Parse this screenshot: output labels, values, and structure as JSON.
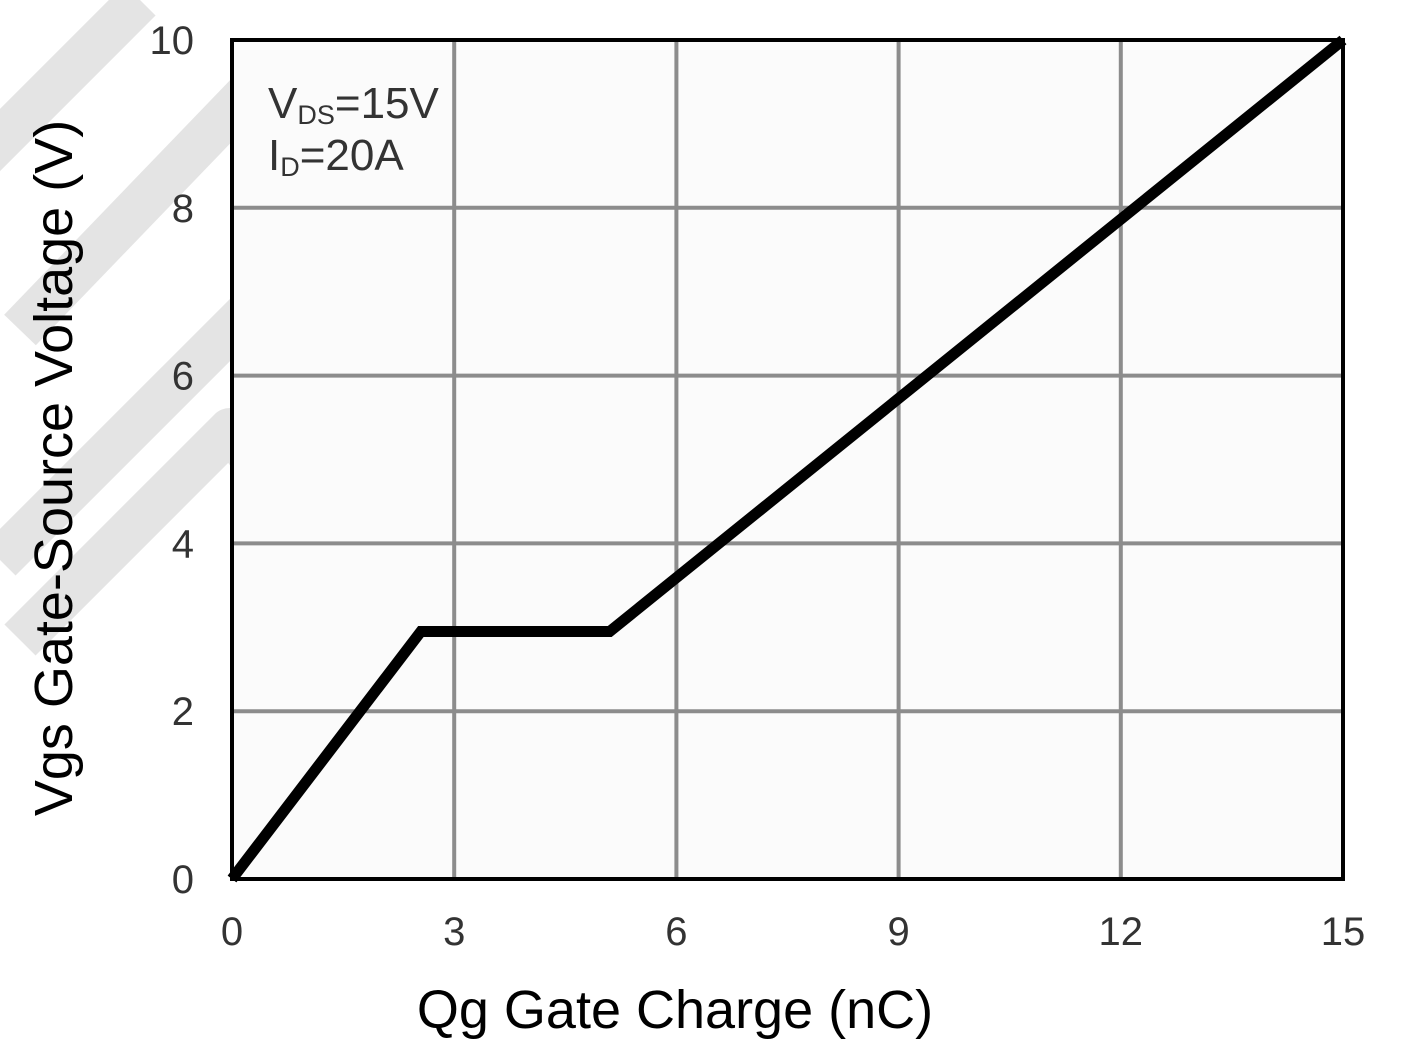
{
  "chart_data": {
    "type": "line",
    "xlabel": "Qg Gate Charge (nC)",
    "ylabel": "Vgs Gate-Source Voltage (V)",
    "xlim": [
      0,
      15
    ],
    "ylim": [
      0,
      10
    ],
    "xticks": [
      "0",
      "3",
      "6",
      "9",
      "12",
      "15"
    ],
    "yticks": [
      "0",
      "2",
      "4",
      "6",
      "8",
      "10"
    ],
    "grid": true,
    "annotations": {
      "vds": {
        "main": "V",
        "sub": "DS",
        "rest": "=15V"
      },
      "id": {
        "main": "I",
        "sub": "D",
        "rest": "=20A"
      }
    },
    "series": [
      {
        "x": [
          0,
          2.55,
          5.1,
          15
        ],
        "y": [
          0,
          2.95,
          2.95,
          10
        ]
      }
    ],
    "colors": {
      "line": "#000000",
      "grid": "#8c8c8c",
      "plot_bg": "#fbfbfb",
      "watermark": "#e2e2e2"
    }
  }
}
